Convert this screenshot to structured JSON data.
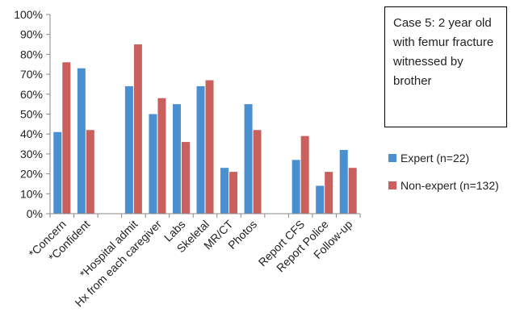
{
  "chart_data": {
    "type": "bar",
    "categories": [
      "*Concern",
      "*Confident",
      "",
      "*Hospital admit",
      "Hx from each caregiver",
      "Labs",
      "Skeletal",
      "MR/CT",
      "Photos",
      "",
      "Report CFS",
      "Report Police",
      "Follow-up"
    ],
    "series": [
      {
        "name": "Expert (n=22)",
        "color": "#4a8fcf",
        "values": [
          41,
          73,
          null,
          64,
          50,
          55,
          64,
          23,
          55,
          null,
          27,
          14,
          32
        ]
      },
      {
        "name": "Non-expert (n=132)",
        "color": "#c9605d",
        "values": [
          76,
          42,
          null,
          85,
          58,
          36,
          67,
          21,
          42,
          null,
          39,
          21,
          23
        ]
      }
    ],
    "ylim": [
      0,
      100
    ],
    "yticks": [
      "0%",
      "10%",
      "20%",
      "30%",
      "40%",
      "50%",
      "60%",
      "70%",
      "80%",
      "90%",
      "100%"
    ],
    "grid": false,
    "legend_position": "right",
    "annotation": "Case 5: 2 year old with femur fracture witnessed by brother"
  }
}
